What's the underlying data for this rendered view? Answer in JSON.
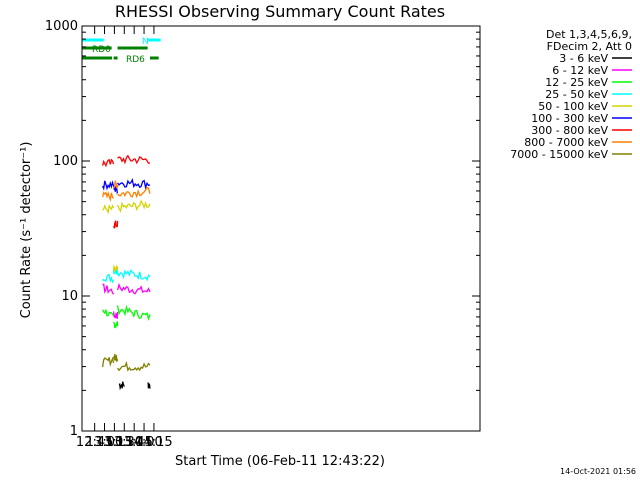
{
  "chart_data": {
    "type": "line",
    "title": "RHESSI Observing Summary Count Rates",
    "xlabel": "Start Time (06-Feb-11 12:43:22)",
    "ylabel": "Count Rate (s⁻¹ detector⁻¹)",
    "yscale": "log",
    "ylim": [
      1,
      1000
    ],
    "xlim_minutes": [
      12.43,
      22.5
    ],
    "xtick_labels": [
      "12:45",
      "13:00",
      "13:15",
      "13:30",
      "13:45",
      "14:00",
      "14:15"
    ],
    "xtick_minutes": [
      12.75,
      13.0,
      13.25,
      13.5,
      13.75,
      14.0,
      14.25
    ],
    "ytick_labels": [
      "1",
      "10",
      "100",
      "1000"
    ],
    "ytick_values": [
      1,
      10,
      100,
      1000
    ],
    "legend_header": [
      "Det 1,3,4,5,6,9,",
      "FDecim 2, Att 0"
    ],
    "legend_position": "right",
    "timestamp": "14-Oct-2021 01:56",
    "series": [
      {
        "name": "3 - 6 keV",
        "color": "#000000",
        "segments": [
          {
            "x": [
              13.37,
              13.5
            ],
            "y": [
              2.2,
              2.2
            ]
          },
          {
            "x": [
              14.1,
              14.15
            ],
            "y": [
              2.2,
              2.2
            ]
          }
        ]
      },
      {
        "name": "6 - 12 keV",
        "color": "#ff00ff",
        "segments": [
          {
            "x": [
              12.95,
              13.23
            ],
            "y": [
              11.5,
              10.8
            ]
          },
          {
            "x": [
              13.23,
              13.33
            ],
            "y": [
              7.2,
              7.2
            ]
          },
          {
            "x": [
              13.33,
              14.15
            ],
            "y": [
              11.5,
              10.8
            ]
          }
        ]
      },
      {
        "name": "12 - 25 keV",
        "color": "#00ff00",
        "segments": [
          {
            "x": [
              12.95,
              13.23
            ],
            "y": [
              8.0,
              6.8
            ]
          },
          {
            "x": [
              13.23,
              13.33
            ],
            "y": [
              6.2,
              6.2
            ]
          },
          {
            "x": [
              13.33,
              14.15
            ],
            "y": [
              8.0,
              7.0
            ]
          }
        ]
      },
      {
        "name": "25 - 50 keV",
        "color": "#00ffff",
        "segments": [
          {
            "x": [
              12.95,
              13.23
            ],
            "y": [
              14.0,
              13.5
            ]
          },
          {
            "x": [
              13.23,
              13.33
            ],
            "y": [
              15.5,
              15.5
            ]
          },
          {
            "x": [
              13.33,
              14.15
            ],
            "y": [
              15.0,
              14.0
            ]
          }
        ]
      },
      {
        "name": "50 - 100 keV",
        "color": "#d4d400",
        "segments": [
          {
            "x": [
              12.95,
              13.23
            ],
            "y": [
              44,
              44
            ]
          },
          {
            "x": [
              13.23,
              13.33
            ],
            "y": [
              15.5,
              15.5
            ]
          },
          {
            "x": [
              13.33,
              14.15
            ],
            "y": [
              45,
              48
            ]
          }
        ]
      },
      {
        "name": "100 - 300 keV",
        "color": "#0000ff",
        "segments": [
          {
            "x": [
              12.95,
              13.23
            ],
            "y": [
              67,
              67
            ]
          },
          {
            "x": [
              13.23,
              13.33
            ],
            "y": [
              62,
              62
            ]
          },
          {
            "x": [
              13.33,
              14.15
            ],
            "y": [
              69,
              68
            ]
          }
        ]
      },
      {
        "name": "300 - 800 keV",
        "color": "#ff0000",
        "segments": [
          {
            "x": [
              12.95,
              13.23
            ],
            "y": [
              96,
              96
            ]
          },
          {
            "x": [
              13.23,
              13.33
            ],
            "y": [
              34,
              34
            ]
          },
          {
            "x": [
              13.33,
              14.15
            ],
            "y": [
              103,
              102
            ]
          }
        ]
      },
      {
        "name": "800 - 7000 keV",
        "color": "#ff8000",
        "segments": [
          {
            "x": [
              12.95,
              13.23
            ],
            "y": [
              55,
              55
            ]
          },
          {
            "x": [
              13.23,
              13.33
            ],
            "y": [
              67,
              67
            ]
          },
          {
            "x": [
              13.33,
              14.15
            ],
            "y": [
              57,
              60
            ]
          }
        ]
      },
      {
        "name": "7000 - 15000 keV",
        "color": "#808000",
        "segments": [
          {
            "x": [
              12.95,
              13.23
            ],
            "y": [
              3.2,
              3.4
            ]
          },
          {
            "x": [
              13.23,
              13.33
            ],
            "y": [
              3.5,
              3.5
            ]
          },
          {
            "x": [
              13.33,
              14.15
            ],
            "y": [
              3.0,
              3.0
            ]
          }
        ]
      }
    ],
    "annotations": [
      {
        "label": "N",
        "color": "#00ffff"
      },
      {
        "label": "RD0",
        "color": "#008000"
      },
      {
        "label": "RD6",
        "color": "#008000"
      }
    ]
  }
}
